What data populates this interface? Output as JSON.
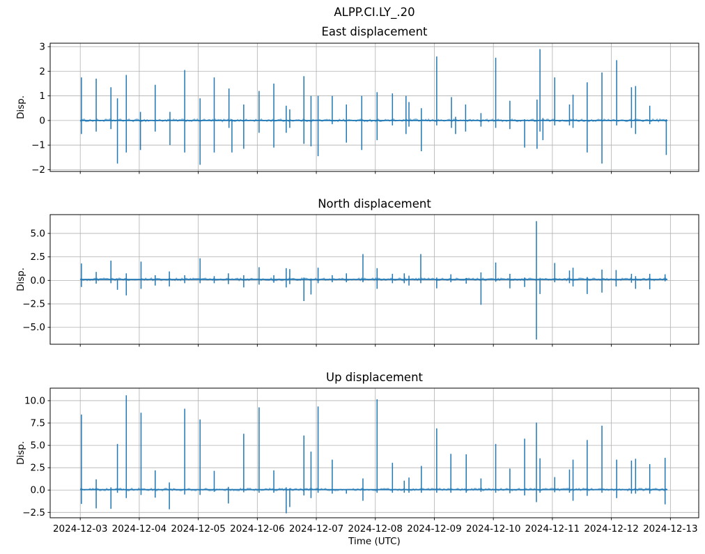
{
  "figure": {
    "title": "ALPP.CI.LY_.20",
    "background": "#ffffff",
    "text_color": "#000000",
    "line_color": "#1f77b4",
    "grid_color": "#b0b0b0",
    "frame_color": "#000000",
    "ylabel": "Disp.",
    "xaxis": {
      "label": "Time (UTC)",
      "xlim_days": [
        -0.51,
        10.48
      ],
      "tick_days": [
        0,
        1,
        2,
        3,
        4,
        5,
        6,
        7,
        8,
        9,
        10
      ],
      "tick_labels": [
        "2024-12-03",
        "2024-12-04",
        "2024-12-05",
        "2024-12-06",
        "2024-12-07",
        "2024-12-08",
        "2024-12-09",
        "2024-12-10",
        "2024-12-11",
        "2024-12-12",
        "2024-12-13"
      ]
    }
  },
  "chart_data": [
    {
      "type": "line",
      "id": "east",
      "title": "East displacement",
      "ylabel": "Disp.",
      "ylim": [
        -2.07,
        3.14
      ],
      "yticks": [
        3,
        2,
        1,
        0,
        -1,
        -2
      ],
      "ytick_labels": [
        "3",
        "2",
        "1",
        "0",
        "−1",
        "−2"
      ],
      "baseline_value": 0,
      "t_range_days": [
        0.0,
        9.95
      ],
      "noise_amplitude": 0.05,
      "spike_fields": [
        "t_days",
        "up",
        "down"
      ],
      "spikes": [
        [
          0.02,
          1.75,
          -0.55
        ],
        [
          0.27,
          1.7,
          -0.45
        ],
        [
          0.52,
          1.35,
          -0.35
        ],
        [
          0.63,
          0.9,
          -1.75
        ],
        [
          0.78,
          1.85,
          -1.3
        ],
        [
          1.02,
          0.35,
          -1.2
        ],
        [
          1.27,
          1.45,
          -0.45
        ],
        [
          1.52,
          0.35,
          -1.0
        ],
        [
          1.77,
          2.05,
          -1.3
        ],
        [
          2.03,
          0.9,
          -1.8
        ],
        [
          2.27,
          1.75,
          -1.3
        ],
        [
          2.52,
          1.3,
          -0.3
        ],
        [
          2.57,
          0.05,
          -1.3
        ],
        [
          2.77,
          0.65,
          -1.15
        ],
        [
          3.03,
          1.2,
          -0.5
        ],
        [
          3.28,
          1.5,
          -1.1
        ],
        [
          3.49,
          0.6,
          -0.5
        ],
        [
          3.55,
          0.45,
          -0.3
        ],
        [
          3.79,
          1.8,
          -0.95
        ],
        [
          3.91,
          1.0,
          -1.05
        ],
        [
          4.03,
          1.0,
          -1.45
        ],
        [
          4.27,
          1.0,
          -0.15
        ],
        [
          4.51,
          0.65,
          -0.9
        ],
        [
          4.77,
          1.0,
          -1.2
        ],
        [
          5.03,
          1.15,
          -0.8
        ],
        [
          5.29,
          1.1,
          -0.2
        ],
        [
          5.52,
          1.0,
          -0.55
        ],
        [
          5.57,
          0.75,
          -0.25
        ],
        [
          5.78,
          0.5,
          -1.25
        ],
        [
          6.04,
          2.6,
          -0.2
        ],
        [
          6.29,
          0.95,
          -0.3
        ],
        [
          6.36,
          0.15,
          -0.55
        ],
        [
          6.53,
          0.65,
          -0.45
        ],
        [
          6.79,
          0.3,
          -0.25
        ],
        [
          7.04,
          2.55,
          -0.3
        ],
        [
          7.28,
          0.8,
          -0.35
        ],
        [
          7.53,
          0.05,
          -1.1
        ],
        [
          7.74,
          0.85,
          -1.15
        ],
        [
          7.79,
          2.9,
          -0.45
        ],
        [
          7.84,
          0.1,
          -0.8
        ],
        [
          8.04,
          1.75,
          -0.2
        ],
        [
          8.29,
          0.65,
          -0.2
        ],
        [
          8.35,
          1.05,
          -0.3
        ],
        [
          8.59,
          1.55,
          -1.3
        ],
        [
          8.84,
          1.95,
          -1.75
        ],
        [
          9.09,
          2.45,
          -0.2
        ],
        [
          9.34,
          1.35,
          -0.3
        ],
        [
          9.41,
          1.4,
          -0.55
        ],
        [
          9.65,
          0.6,
          -0.15
        ],
        [
          9.93,
          0.05,
          -1.4
        ]
      ]
    },
    {
      "type": "line",
      "id": "north",
      "title": "North displacement",
      "ylabel": "Disp.",
      "ylim": [
        -6.8,
        7.0
      ],
      "yticks": [
        5.0,
        2.5,
        0.0,
        -2.5,
        -5.0
      ],
      "ytick_labels": [
        "5.0",
        "2.5",
        "0.0",
        "−2.5",
        "−5.0"
      ],
      "baseline_value": 0.1,
      "t_range_days": [
        0.0,
        9.95
      ],
      "noise_amplitude": 0.13,
      "spike_fields": [
        "t_days",
        "up",
        "down"
      ],
      "spikes": [
        [
          0.02,
          1.8,
          -0.7
        ],
        [
          0.27,
          0.9,
          -0.35
        ],
        [
          0.52,
          2.1,
          -0.3
        ],
        [
          0.63,
          0.1,
          -1.0
        ],
        [
          0.78,
          0.75,
          -1.6
        ],
        [
          1.03,
          2.0,
          -0.9
        ],
        [
          1.27,
          0.55,
          -0.55
        ],
        [
          1.51,
          0.95,
          -0.65
        ],
        [
          1.77,
          0.55,
          -0.3
        ],
        [
          2.03,
          2.35,
          -0.3
        ],
        [
          2.27,
          0.45,
          -0.3
        ],
        [
          2.51,
          0.75,
          -0.4
        ],
        [
          2.77,
          0.55,
          -0.75
        ],
        [
          3.03,
          1.4,
          -0.45
        ],
        [
          3.28,
          0.55,
          -0.25
        ],
        [
          3.49,
          1.3,
          -0.75
        ],
        [
          3.55,
          1.2,
          -0.4
        ],
        [
          3.79,
          0.3,
          -2.2
        ],
        [
          3.91,
          0.2,
          -1.5
        ],
        [
          4.03,
          1.35,
          -0.3
        ],
        [
          4.27,
          0.55,
          -0.2
        ],
        [
          4.51,
          0.75,
          -0.2
        ],
        [
          4.79,
          2.8,
          -0.2
        ],
        [
          5.03,
          1.3,
          -0.9
        ],
        [
          5.29,
          0.7,
          -0.3
        ],
        [
          5.49,
          0.75,
          -0.3
        ],
        [
          5.57,
          0.5,
          -0.55
        ],
        [
          5.77,
          2.8,
          -0.3
        ],
        [
          6.04,
          0.3,
          -0.85
        ],
        [
          6.28,
          0.65,
          -0.2
        ],
        [
          6.54,
          0.25,
          -0.35
        ],
        [
          6.79,
          0.85,
          -2.6
        ],
        [
          7.04,
          1.9,
          -0.15
        ],
        [
          7.28,
          0.7,
          -0.85
        ],
        [
          7.53,
          0.3,
          -0.7
        ],
        [
          7.73,
          6.3,
          -6.3
        ],
        [
          7.79,
          0.1,
          -1.45
        ],
        [
          8.04,
          1.85,
          -0.2
        ],
        [
          8.29,
          1.05,
          -0.3
        ],
        [
          8.35,
          1.35,
          -0.65
        ],
        [
          8.59,
          0.35,
          -1.45
        ],
        [
          8.84,
          1.15,
          -1.3
        ],
        [
          9.08,
          1.1,
          -0.65
        ],
        [
          9.34,
          0.7,
          -0.25
        ],
        [
          9.41,
          0.45,
          -0.9
        ],
        [
          9.65,
          0.7,
          -0.95
        ],
        [
          9.91,
          0.65,
          -0.1
        ]
      ]
    },
    {
      "type": "line",
      "id": "up",
      "title": "Up displacement",
      "ylabel": "Disp.",
      "ylim": [
        -3.1,
        11.4
      ],
      "yticks": [
        10.0,
        7.5,
        5.0,
        2.5,
        0.0,
        -2.5
      ],
      "ytick_labels": [
        "10.0",
        "7.5",
        "5.0",
        "2.5",
        "0.0",
        "−2.5"
      ],
      "baseline_value": 0.05,
      "t_range_days": [
        0.0,
        9.95
      ],
      "noise_amplitude": 0.13,
      "spike_fields": [
        "t_days",
        "up",
        "down"
      ],
      "spikes": [
        [
          0.02,
          8.45,
          -1.55
        ],
        [
          0.27,
          1.2,
          -2.05
        ],
        [
          0.52,
          0.3,
          -2.1
        ],
        [
          0.63,
          5.15,
          -0.3
        ],
        [
          0.78,
          10.6,
          -0.9
        ],
        [
          1.03,
          8.65,
          -0.55
        ],
        [
          1.27,
          2.2,
          -0.85
        ],
        [
          1.51,
          0.85,
          -2.15
        ],
        [
          1.77,
          9.1,
          -0.5
        ],
        [
          2.03,
          7.9,
          -0.55
        ],
        [
          2.27,
          2.15,
          -0.2
        ],
        [
          2.51,
          0.35,
          -1.5
        ],
        [
          2.77,
          6.3,
          -0.25
        ],
        [
          3.03,
          9.25,
          -0.3
        ],
        [
          3.28,
          2.2,
          -0.3
        ],
        [
          3.49,
          0.3,
          -2.6
        ],
        [
          3.55,
          0.2,
          -1.9
        ],
        [
          3.79,
          6.1,
          -0.6
        ],
        [
          3.91,
          4.3,
          -0.9
        ],
        [
          4.03,
          9.35,
          -0.3
        ],
        [
          4.27,
          3.4,
          -0.4
        ],
        [
          4.51,
          0.1,
          -0.4
        ],
        [
          4.79,
          1.3,
          -1.2
        ],
        [
          5.03,
          10.15,
          -0.3
        ],
        [
          5.29,
          3.05,
          -0.3
        ],
        [
          5.49,
          1.05,
          -0.3
        ],
        [
          5.57,
          1.4,
          -0.3
        ],
        [
          5.78,
          2.7,
          -0.3
        ],
        [
          6.04,
          6.9,
          -0.3
        ],
        [
          6.28,
          4.05,
          -0.3
        ],
        [
          6.54,
          4.0,
          -0.3
        ],
        [
          6.79,
          1.3,
          -0.2
        ],
        [
          7.04,
          5.15,
          -0.3
        ],
        [
          7.28,
          2.4,
          -0.35
        ],
        [
          7.53,
          5.75,
          -0.6
        ],
        [
          7.73,
          7.55,
          -1.35
        ],
        [
          7.79,
          3.55,
          -0.3
        ],
        [
          8.04,
          1.45,
          -0.25
        ],
        [
          8.29,
          2.3,
          -0.3
        ],
        [
          8.35,
          3.4,
          -1.2
        ],
        [
          8.59,
          5.6,
          -0.65
        ],
        [
          8.84,
          7.2,
          -0.3
        ],
        [
          9.09,
          3.4,
          -0.9
        ],
        [
          9.34,
          3.3,
          -0.4
        ],
        [
          9.41,
          3.5,
          -0.4
        ],
        [
          9.65,
          2.9,
          -0.4
        ],
        [
          9.91,
          3.6,
          -1.6
        ]
      ]
    }
  ]
}
